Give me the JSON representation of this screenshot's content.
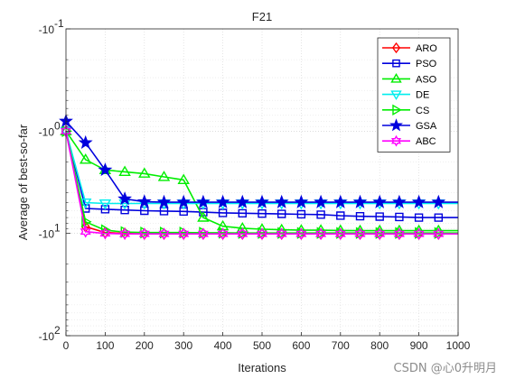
{
  "chart_data": {
    "type": "line",
    "title": "F21",
    "xlabel": "Iterations",
    "ylabel": "Average of best-so-far",
    "xlim": [
      0,
      1000
    ],
    "x_ticks": [
      "0",
      "100",
      "200",
      "300",
      "400",
      "500",
      "600",
      "700",
      "800",
      "900",
      "1000"
    ],
    "y_scale": "log (negative values)",
    "y_ticks": [
      "-10",
      "-10",
      "-10",
      "-10"
    ],
    "y_tick_exponents": [
      "-1",
      "0",
      "1",
      "2"
    ],
    "y_tick_magnitudes": [
      0.1,
      1,
      10,
      100
    ],
    "grid": true,
    "legend_position": "top-right",
    "x": [
      0,
      50,
      100,
      150,
      200,
      250,
      300,
      350,
      400,
      450,
      500,
      550,
      600,
      650,
      700,
      750,
      800,
      850,
      900,
      950
    ],
    "series": [
      {
        "name": "ARO",
        "color": "#ff0000",
        "marker": "diamond",
        "values": [
          -1.0,
          -8.6,
          -9.8,
          -10.0,
          -10.1,
          -10.1,
          -10.1,
          -10.1,
          -10.1,
          -10.1,
          -10.1,
          -10.1,
          -10.1,
          -10.1,
          -10.1,
          -10.1,
          -10.1,
          -10.1,
          -10.1,
          -10.1
        ]
      },
      {
        "name": "PSO",
        "color": "#0000dd",
        "marker": "square",
        "values": [
          -1.0,
          -5.7,
          -5.8,
          -5.9,
          -6.0,
          -6.05,
          -6.1,
          -6.2,
          -6.3,
          -6.35,
          -6.4,
          -6.45,
          -6.5,
          -6.55,
          -6.7,
          -6.8,
          -6.85,
          -6.9,
          -7.0,
          -7.0
        ]
      },
      {
        "name": "ASO",
        "color": "#00ee00",
        "marker": "triangle-up",
        "values": [
          -1.0,
          -1.9,
          -2.4,
          -2.5,
          -2.6,
          -2.8,
          -3.0,
          -7.0,
          -8.5,
          -8.9,
          -9.1,
          -9.2,
          -9.3,
          -9.3,
          -9.35,
          -9.4,
          -9.4,
          -9.4,
          -9.4,
          -9.4
        ]
      },
      {
        "name": "DE",
        "color": "#00eeee",
        "marker": "triangle-down",
        "values": [
          -1.0,
          -5.0,
          -5.1,
          -5.1,
          -5.1,
          -5.1,
          -5.1,
          -5.1,
          -5.1,
          -5.1,
          -5.1,
          -5.1,
          -5.1,
          -5.1,
          -5.1,
          -5.1,
          -5.1,
          -5.1,
          -5.1,
          -5.1
        ]
      },
      {
        "name": "CS",
        "color": "#00ee00",
        "marker": "triangle-right",
        "values": [
          -1.0,
          -7.7,
          -9.3,
          -9.7,
          -9.8,
          -9.8,
          -9.8,
          -9.85,
          -9.85,
          -9.9,
          -9.9,
          -9.9,
          -9.9,
          -9.9,
          -9.9,
          -9.9,
          -9.9,
          -9.9,
          -9.9,
          -9.9
        ]
      },
      {
        "name": "GSA",
        "color": "#0000dd",
        "marker": "pentagram",
        "values": [
          -0.8,
          -1.3,
          -2.4,
          -4.6,
          -4.9,
          -4.95,
          -4.95,
          -4.95,
          -4.95,
          -4.95,
          -4.95,
          -4.95,
          -4.95,
          -4.95,
          -4.95,
          -4.95,
          -4.95,
          -4.95,
          -4.95,
          -4.95
        ]
      },
      {
        "name": "ABC",
        "color": "#ff00ff",
        "marker": "hexagram",
        "values": [
          -1.0,
          -9.6,
          -10.0,
          -10.1,
          -10.1,
          -10.1,
          -10.1,
          -10.1,
          -10.1,
          -10.1,
          -10.1,
          -10.1,
          -10.1,
          -10.1,
          -10.1,
          -10.1,
          -10.1,
          -10.1,
          -10.1,
          -10.1
        ]
      }
    ]
  },
  "watermark": "CSDN @心0升明月"
}
